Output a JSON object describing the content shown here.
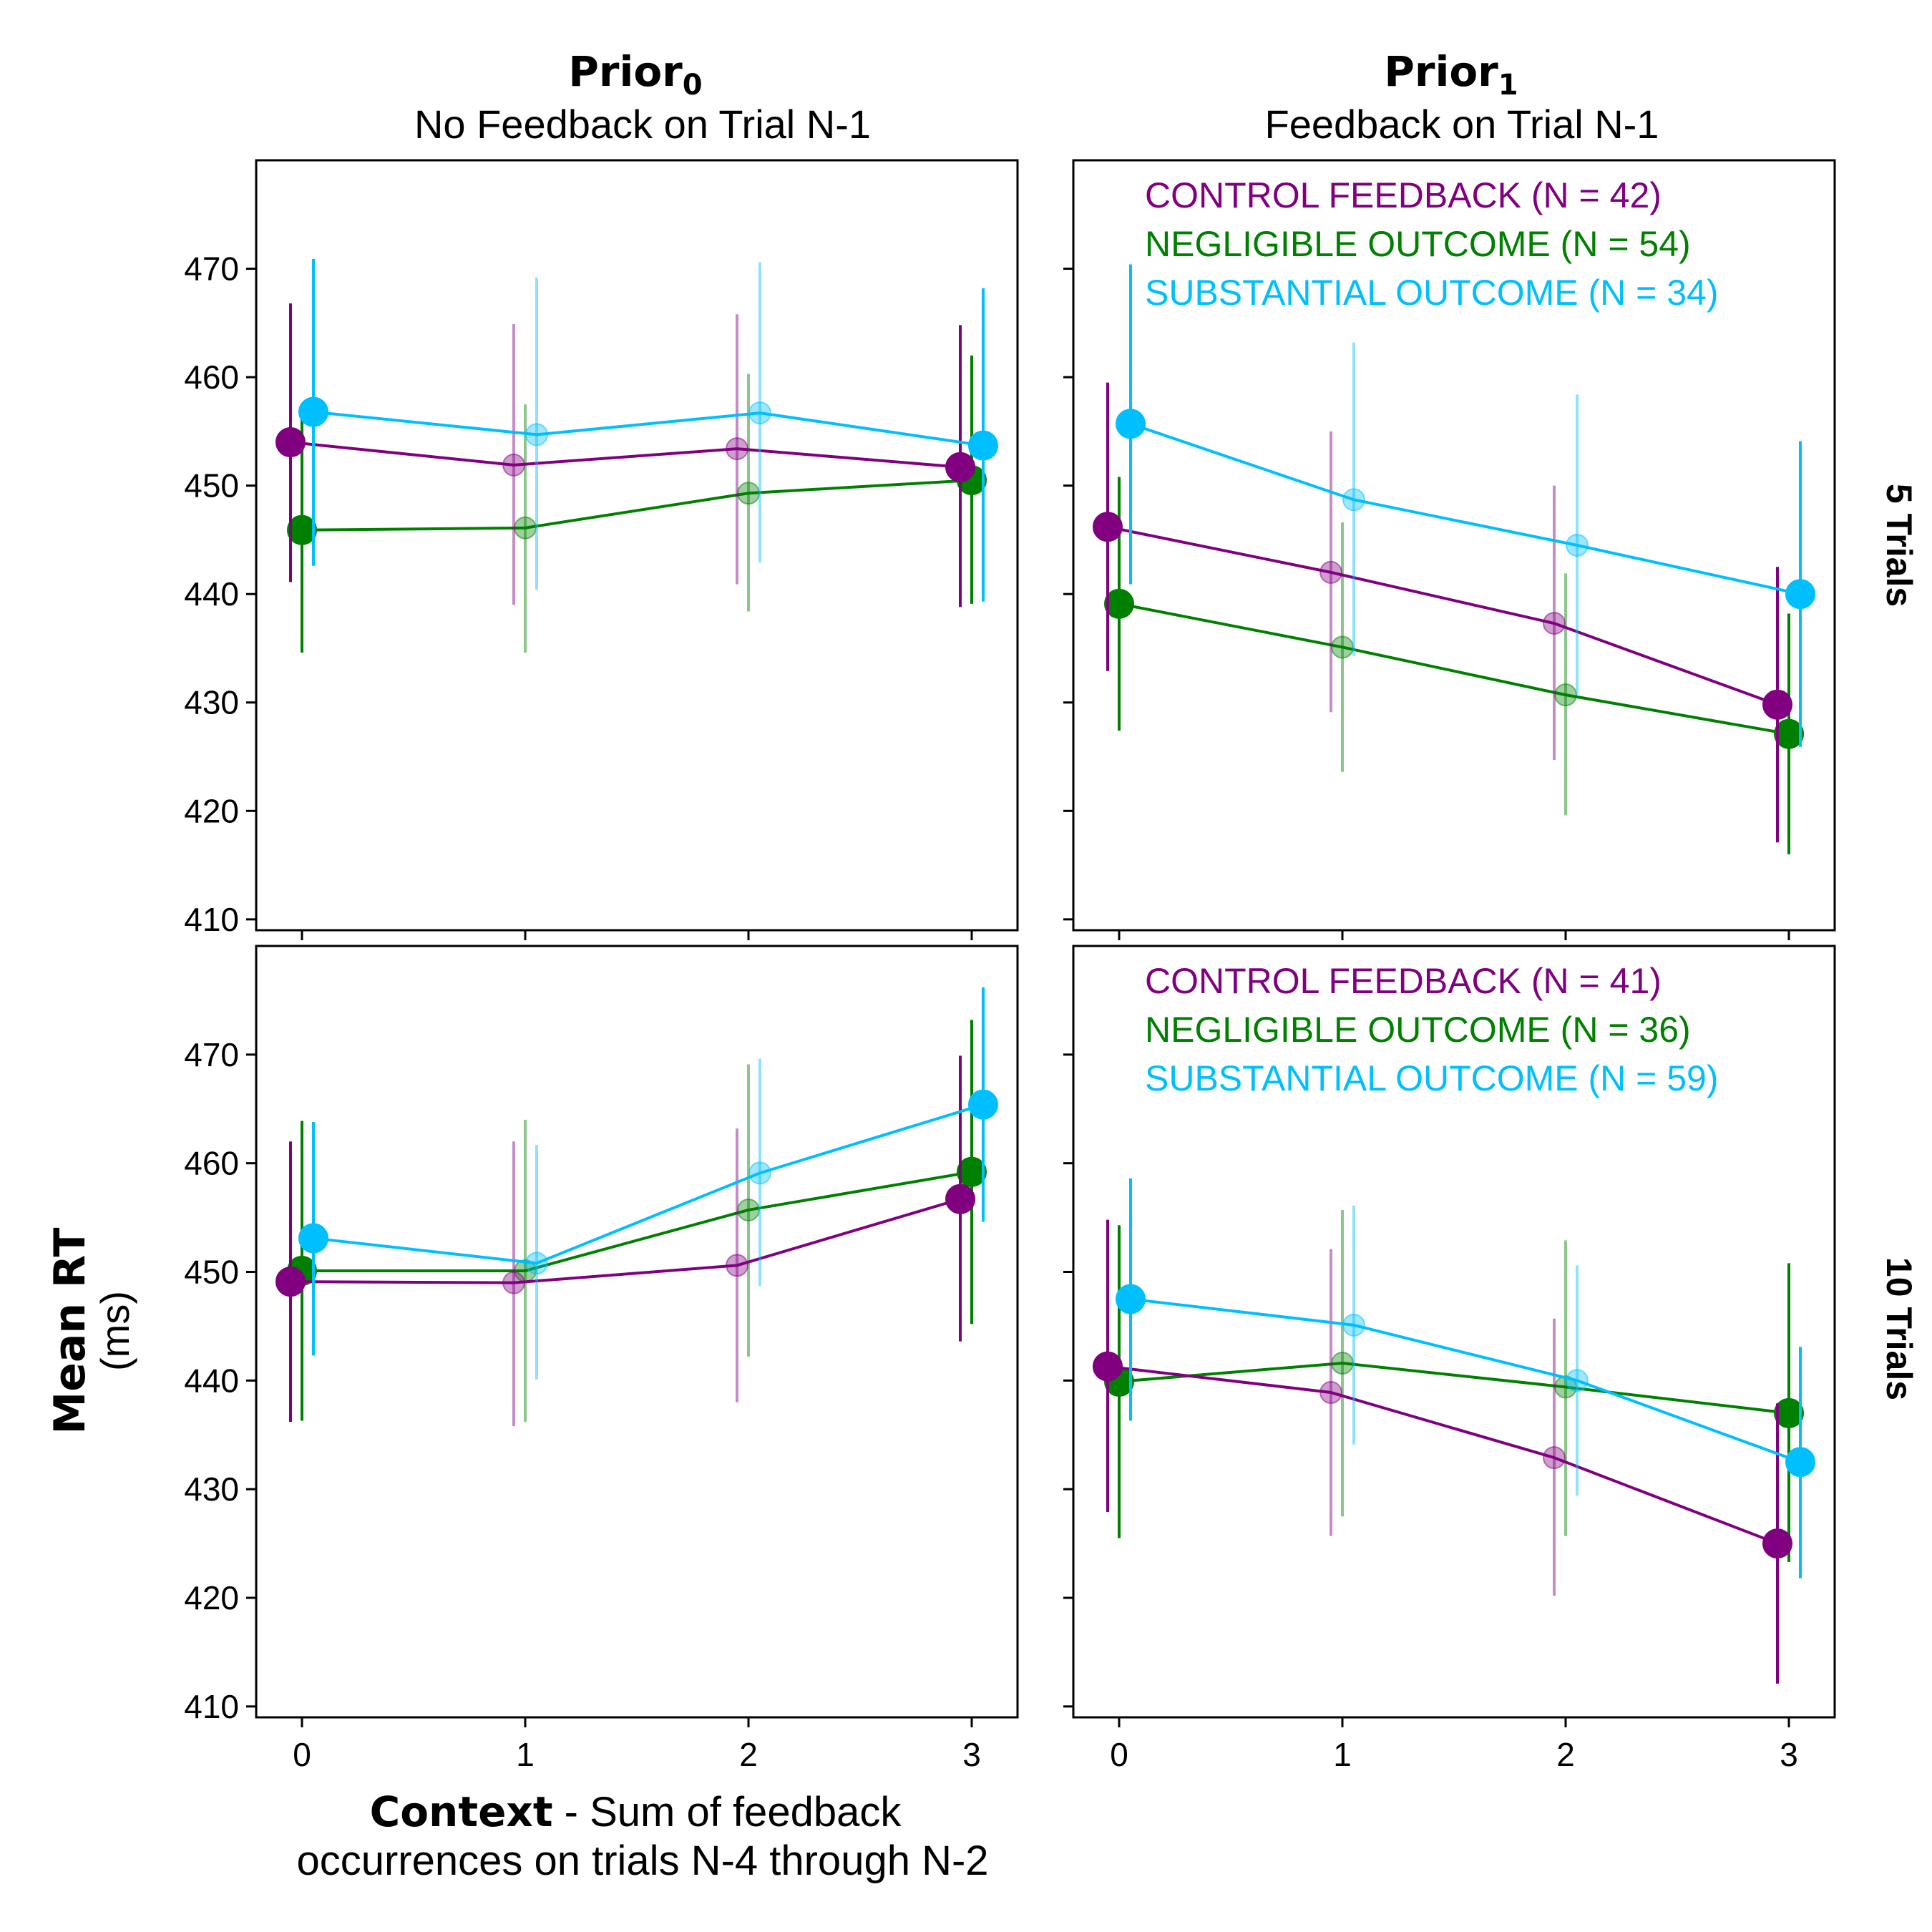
{
  "figure": {
    "column_titles": [
      {
        "main": "Prior",
        "sub": "0",
        "subtitle": "No Feedback on Trial N-1"
      },
      {
        "main": "Prior",
        "sub": "1",
        "subtitle": "Feedback on Trial N-1"
      }
    ],
    "row_labels": [
      "5 Trials",
      "10 Trials"
    ],
    "ylabel": {
      "main": "Mean RT",
      "unit": "(ms)"
    },
    "xlabel": {
      "bold": "Context",
      "rest": " - Sum of feedback",
      "line2": "occurrences on trials N-4 through N-2"
    }
  },
  "chart_data": {
    "type": "line",
    "x": [
      0,
      1,
      2,
      3
    ],
    "x_ticks": [
      "0",
      "1",
      "2",
      "3"
    ],
    "ylim": [
      409,
      480
    ],
    "y_ticks": [
      410,
      420,
      430,
      440,
      450,
      460,
      470
    ],
    "grid": false,
    "series_colors": {
      "control": "#800080",
      "negligible": "#008000",
      "substantial": "#00BFFF"
    },
    "panels": [
      {
        "id": "prior0-5trials",
        "column": 0,
        "row": 0,
        "legend": [],
        "series": [
          {
            "key": "control",
            "mean": [
              454.0,
              451.9,
              453.4,
              451.7
            ],
            "lower": [
              441.1,
              439.0,
              440.9,
              438.8
            ],
            "upper": [
              466.8,
              464.9,
              465.8,
              464.8
            ]
          },
          {
            "key": "negligible",
            "mean": [
              445.9,
              446.1,
              449.3,
              450.5
            ],
            "lower": [
              434.6,
              434.6,
              438.4,
              439.1
            ],
            "upper": [
              457.1,
              457.5,
              460.3,
              462.0
            ]
          },
          {
            "key": "substantial",
            "mean": [
              456.8,
              454.7,
              456.7,
              453.7
            ],
            "lower": [
              442.6,
              440.4,
              442.9,
              439.3
            ],
            "upper": [
              470.9,
              469.2,
              470.6,
              468.2
            ]
          }
        ]
      },
      {
        "id": "prior1-5trials",
        "column": 1,
        "row": 0,
        "legend": [
          {
            "key": "control",
            "label": "CONTROL FEEDBACK (N = 42)"
          },
          {
            "key": "negligible",
            "label": "NEGLIGIBLE OUTCOME (N = 54)"
          },
          {
            "key": "substantial",
            "label": "SUBSTANTIAL OUTCOME (N = 34)"
          }
        ],
        "series": [
          {
            "key": "control",
            "mean": [
              446.2,
              442.0,
              437.3,
              429.8
            ],
            "lower": [
              432.9,
              429.1,
              424.7,
              417.1
            ],
            "upper": [
              459.5,
              455.0,
              450.0,
              442.5
            ]
          },
          {
            "key": "negligible",
            "mean": [
              439.1,
              435.1,
              430.7,
              427.1
            ],
            "lower": [
              427.4,
              423.6,
              419.6,
              416.0
            ],
            "upper": [
              450.8,
              446.6,
              441.9,
              438.2
            ]
          },
          {
            "key": "substantial",
            "mean": [
              455.7,
              448.7,
              444.5,
              440.0
            ],
            "lower": [
              440.9,
              434.3,
              430.7,
              425.9
            ],
            "upper": [
              470.4,
              463.2,
              458.4,
              454.1
            ]
          }
        ]
      },
      {
        "id": "prior0-10trials",
        "column": 0,
        "row": 1,
        "legend": [],
        "series": [
          {
            "key": "control",
            "mean": [
              449.1,
              449.0,
              450.6,
              456.7
            ],
            "lower": [
              436.2,
              435.8,
              438.0,
              443.6
            ],
            "upper": [
              462.0,
              462.0,
              463.2,
              469.9
            ]
          },
          {
            "key": "negligible",
            "mean": [
              450.1,
              450.1,
              455.7,
              459.2
            ],
            "lower": [
              436.3,
              436.2,
              442.2,
              445.2
            ],
            "upper": [
              463.9,
              464.0,
              469.1,
              473.2
            ]
          },
          {
            "key": "substantial",
            "mean": [
              453.1,
              450.8,
              459.1,
              465.4
            ],
            "lower": [
              442.3,
              440.1,
              448.7,
              454.6
            ],
            "upper": [
              463.8,
              461.7,
              469.6,
              476.2
            ]
          }
        ]
      },
      {
        "id": "prior1-10trials",
        "column": 1,
        "row": 1,
        "legend": [
          {
            "key": "control",
            "label": "CONTROL FEEDBACK (N = 41)"
          },
          {
            "key": "negligible",
            "label": "NEGLIGIBLE OUTCOME (N = 36)"
          },
          {
            "key": "substantial",
            "label": "SUBSTANTIAL OUTCOME (N = 59)"
          }
        ],
        "series": [
          {
            "key": "control",
            "mean": [
              441.3,
              438.9,
              432.9,
              425.0
            ],
            "lower": [
              427.9,
              425.7,
              420.2,
              412.1
            ],
            "upper": [
              454.8,
              452.1,
              445.7,
              437.9
            ]
          },
          {
            "key": "negligible",
            "mean": [
              439.9,
              441.6,
              439.4,
              437.0
            ],
            "lower": [
              425.5,
              427.5,
              425.7,
              423.3
            ],
            "upper": [
              454.3,
              455.7,
              452.9,
              450.8
            ]
          },
          {
            "key": "substantial",
            "mean": [
              447.5,
              445.1,
              440.0,
              432.5
            ],
            "lower": [
              436.3,
              434.1,
              429.4,
              421.8
            ],
            "upper": [
              458.6,
              456.1,
              450.6,
              443.1
            ]
          }
        ]
      }
    ]
  }
}
